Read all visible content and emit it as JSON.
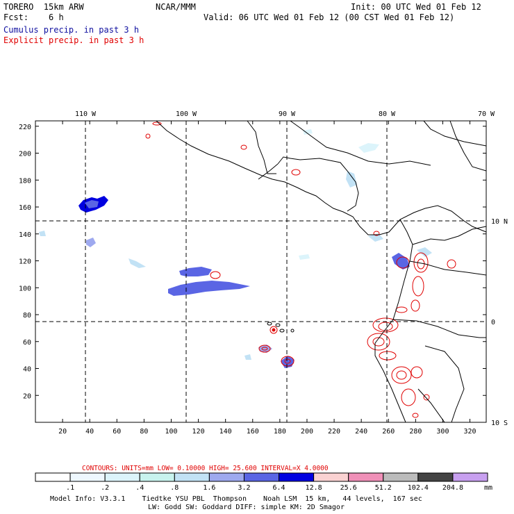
{
  "header": {
    "model": "TORERO  15km ARW",
    "center": "NCAR/MMM",
    "init": "Init: 00 UTC Wed 01 Feb 12",
    "fcst": "Fcst:    6 h",
    "valid": "Valid: 06 UTC Wed 01 Feb 12 (00 CST Wed 01 Feb 12)",
    "line_cumulus": "Cumulus precip. in past 3 h",
    "line_explicit": "Explicit precip. in past 3 h",
    "color_cumulus": "#1010a0",
    "color_explicit": "#e00000"
  },
  "map": {
    "x_ticks": [
      20,
      40,
      60,
      80,
      100,
      120,
      140,
      160,
      180,
      200,
      220,
      240,
      260,
      280,
      300,
      320
    ],
    "y_ticks": [
      20,
      40,
      60,
      80,
      100,
      120,
      140,
      160,
      180,
      200,
      220
    ],
    "lon_labels": [
      "110 W",
      "100 W",
      "90 W",
      "80 W",
      "70 W"
    ],
    "lat_labels": [
      "10 N",
      "0",
      "10 S"
    ]
  },
  "contours": {
    "units_text": "CONTOURS:  UNITS=mm  LOW= 0.10000      HIGH=  25.600      INTERVAL=X  4.0000",
    "color": "#e00000"
  },
  "colorbar": {
    "labels": [
      ".1",
      ".2",
      ".4",
      ".8",
      "1.6",
      "3.2",
      "6.4",
      "12.8",
      "25.6",
      "51.2",
      "102.4",
      "204.8"
    ],
    "colors": [
      "#ffffff",
      "#eef8ff",
      "#dcf4fb",
      "#c8f3ee",
      "#c2e2f5",
      "#9ea9ef",
      "#5a65e4",
      "#0000e0",
      "#fad2d2",
      "#f090b8",
      "#bcbcbc",
      "#444444",
      "#c8a0f0"
    ],
    "unit": "mm"
  },
  "footer": {
    "line1": "Model Info: V3.3.1    Tiedtke YSU PBL  Thompson    Noah LSM  15 km,   44 levels,  167 sec",
    "line2": "LW: Godd SW: Goddard DIFF: simple KM: 2D Smagor"
  }
}
